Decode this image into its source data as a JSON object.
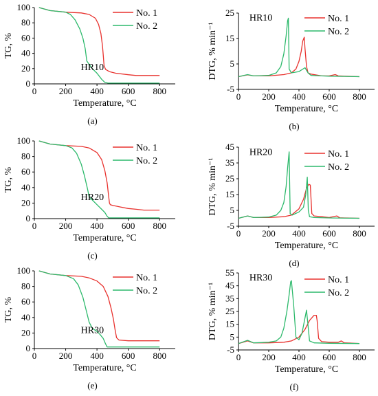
{
  "colors": {
    "no1": "#e8312d",
    "no2": "#2cb96b",
    "axis": "#000000",
    "grid": "#e6e6e6"
  },
  "chart_data": [
    {
      "type": "line",
      "panel": "(a)",
      "annotation": "HR10",
      "xlabel": "Temperature, °C",
      "ylabel": "TG, %",
      "xlim": [
        0,
        900
      ],
      "ylim": [
        0,
        100
      ],
      "xticks": [
        0,
        200,
        400,
        600,
        800
      ],
      "yticks": [
        0,
        20,
        40,
        60,
        80,
        100
      ],
      "legend_position": "top-right",
      "series": [
        {
          "name": "No. 1",
          "color_key": "no1",
          "x": [
            30,
            100,
            200,
            300,
            350,
            390,
            410,
            425,
            435,
            440,
            445,
            455,
            480,
            520,
            600,
            650,
            700,
            800
          ],
          "y": [
            100,
            96,
            94,
            93,
            91,
            86,
            78,
            66,
            50,
            38,
            24,
            19,
            16,
            14,
            12,
            11,
            11,
            11
          ]
        },
        {
          "name": "No. 2",
          "color_key": "no2",
          "x": [
            30,
            100,
            200,
            230,
            260,
            290,
            310,
            325,
            335,
            345,
            370,
            400,
            430,
            450,
            470,
            600,
            800
          ],
          "y": [
            100,
            96,
            94,
            91,
            84,
            72,
            60,
            46,
            30,
            27,
            20,
            14,
            6,
            2,
            1,
            1,
            1
          ]
        }
      ]
    },
    {
      "type": "line",
      "panel": "(b)",
      "annotation": "HR10",
      "xlabel": "Temperature, °C",
      "ylabel": "DTG, % min⁻¹",
      "xlim": [
        0,
        900
      ],
      "ylim": [
        -5,
        25
      ],
      "xticks": [
        0,
        200,
        400,
        600,
        800
      ],
      "yticks": [
        -5,
        5,
        15,
        25
      ],
      "legend_position": "top-right",
      "series": [
        {
          "name": "No. 1",
          "color_key": "no1",
          "x": [
            0,
            60,
            100,
            200,
            300,
            350,
            380,
            400,
            415,
            425,
            435,
            440,
            450,
            460,
            480,
            550,
            600,
            640,
            660,
            700,
            800
          ],
          "y": [
            0,
            0.7,
            0.3,
            0.3,
            0.8,
            1.5,
            3,
            6,
            10,
            14,
            15.5,
            11,
            4,
            1.5,
            1,
            0.3,
            0.3,
            0.8,
            0.3,
            0.2,
            0
          ]
        },
        {
          "name": "No. 2",
          "color_key": "no2",
          "x": [
            0,
            60,
            100,
            200,
            250,
            280,
            300,
            315,
            325,
            330,
            335,
            350,
            400,
            440,
            460,
            480,
            550,
            600,
            700,
            800
          ],
          "y": [
            0,
            0.8,
            0.3,
            0.5,
            1.5,
            4,
            9,
            16,
            22,
            23,
            3,
            1.5,
            2,
            3.5,
            1.5,
            0.5,
            0.3,
            0.2,
            0.1,
            0
          ]
        }
      ]
    },
    {
      "type": "line",
      "panel": "(c)",
      "annotation": "HR20",
      "xlabel": "Temperature, °C",
      "ylabel": "TG, %",
      "xlim": [
        0,
        900
      ],
      "ylim": [
        0,
        100
      ],
      "xticks": [
        0,
        200,
        400,
        600,
        800
      ],
      "yticks": [
        0,
        20,
        40,
        60,
        80,
        100
      ],
      "legend_position": "top-right",
      "series": [
        {
          "name": "No. 1",
          "color_key": "no1",
          "x": [
            30,
            100,
            200,
            300,
            350,
            400,
            430,
            450,
            465,
            475,
            480,
            485,
            500,
            550,
            600,
            650,
            700,
            800
          ],
          "y": [
            100,
            96,
            94,
            93,
            91,
            85,
            76,
            62,
            46,
            28,
            20,
            18,
            17,
            15,
            13,
            12,
            11,
            11
          ]
        },
        {
          "name": "No. 2",
          "color_key": "no2",
          "x": [
            30,
            100,
            200,
            240,
            270,
            300,
            320,
            340,
            350,
            370,
            400,
            430,
            450,
            465,
            475,
            600,
            800
          ],
          "y": [
            100,
            96,
            94,
            91,
            84,
            70,
            55,
            38,
            28,
            24,
            18,
            12,
            8,
            3,
            1,
            1,
            1
          ]
        }
      ]
    },
    {
      "type": "line",
      "panel": "(d)",
      "annotation": "HR20",
      "xlabel": "Temperature, °C",
      "ylabel": "DTG, % min⁻¹",
      "xlim": [
        0,
        900
      ],
      "ylim": [
        -5,
        45
      ],
      "xticks": [
        0,
        200,
        400,
        600,
        800
      ],
      "yticks": [
        -5,
        5,
        15,
        25,
        35,
        45
      ],
      "legend_position": "top-right",
      "series": [
        {
          "name": "No. 1",
          "color_key": "no1",
          "x": [
            0,
            60,
            100,
            200,
            300,
            350,
            400,
            430,
            450,
            465,
            475,
            480,
            485,
            500,
            550,
            600,
            650,
            670,
            700,
            800
          ],
          "y": [
            0,
            1.5,
            0.5,
            0.5,
            1,
            2,
            6,
            12,
            19,
            21.5,
            21,
            12,
            3,
            1.5,
            1,
            0.5,
            1.5,
            0.3,
            0.2,
            0
          ]
        },
        {
          "name": "No. 2",
          "color_key": "no2",
          "x": [
            0,
            60,
            100,
            200,
            250,
            280,
            300,
            315,
            325,
            335,
            342,
            355,
            400,
            430,
            445,
            455,
            462,
            470,
            500,
            600,
            800
          ],
          "y": [
            0,
            1.5,
            0.5,
            0.8,
            2,
            5,
            10,
            20,
            32,
            42,
            3,
            2,
            4,
            7,
            15,
            26,
            5,
            1,
            0.5,
            0.2,
            0
          ]
        }
      ]
    },
    {
      "type": "line",
      "panel": "(e)",
      "annotation": "HR30",
      "xlabel": "Temperature, °C",
      "ylabel": "TG, %",
      "xlim": [
        0,
        900
      ],
      "ylim": [
        0,
        100
      ],
      "xticks": [
        0,
        200,
        400,
        600,
        800
      ],
      "yticks": [
        0,
        20,
        40,
        60,
        80,
        100
      ],
      "legend_position": "top-right",
      "series": [
        {
          "name": "No. 1",
          "color_key": "no1",
          "x": [
            30,
            100,
            200,
            300,
            350,
            400,
            440,
            470,
            490,
            505,
            515,
            525,
            540,
            600,
            700,
            800
          ],
          "y": [
            100,
            96,
            94,
            93,
            91,
            87,
            80,
            67,
            52,
            38,
            25,
            14,
            11,
            10,
            10,
            10
          ]
        },
        {
          "name": "No. 2",
          "color_key": "no2",
          "x": [
            30,
            100,
            200,
            250,
            280,
            310,
            330,
            350,
            370,
            400,
            420,
            440,
            455,
            465,
            600,
            800
          ],
          "y": [
            100,
            96,
            94,
            90,
            82,
            66,
            50,
            34,
            26,
            22,
            18,
            13,
            6,
            2,
            2,
            2
          ]
        }
      ]
    },
    {
      "type": "line",
      "panel": "(f)",
      "annotation": "HR30",
      "xlabel": "Temperature, °C",
      "ylabel": "DTG, % min⁻¹",
      "xlim": [
        0,
        900
      ],
      "ylim": [
        -5,
        55
      ],
      "xticks": [
        0,
        200,
        400,
        600,
        800
      ],
      "yticks": [
        -5,
        5,
        15,
        25,
        35,
        45,
        55
      ],
      "legend_position": "top-right",
      "series": [
        {
          "name": "No. 1",
          "color_key": "no1",
          "x": [
            0,
            60,
            100,
            200,
            300,
            350,
            400,
            440,
            470,
            500,
            515,
            520,
            530,
            550,
            600,
            660,
            680,
            700,
            750,
            800
          ],
          "y": [
            0,
            2,
            0.5,
            0.5,
            1,
            2,
            5,
            11,
            18,
            22,
            22,
            18,
            4,
            1.5,
            1,
            1,
            2,
            0.5,
            0.3,
            0
          ]
        },
        {
          "name": "No. 2",
          "color_key": "no2",
          "x": [
            0,
            60,
            100,
            200,
            250,
            280,
            300,
            320,
            335,
            345,
            350,
            365,
            380,
            400,
            420,
            440,
            450,
            460,
            470,
            500,
            600,
            800
          ],
          "y": [
            0,
            2.5,
            0.5,
            1,
            2,
            5,
            12,
            25,
            38,
            48,
            49,
            30,
            5,
            3,
            8,
            20,
            26,
            14,
            2,
            0.5,
            0.2,
            0
          ]
        }
      ]
    }
  ]
}
